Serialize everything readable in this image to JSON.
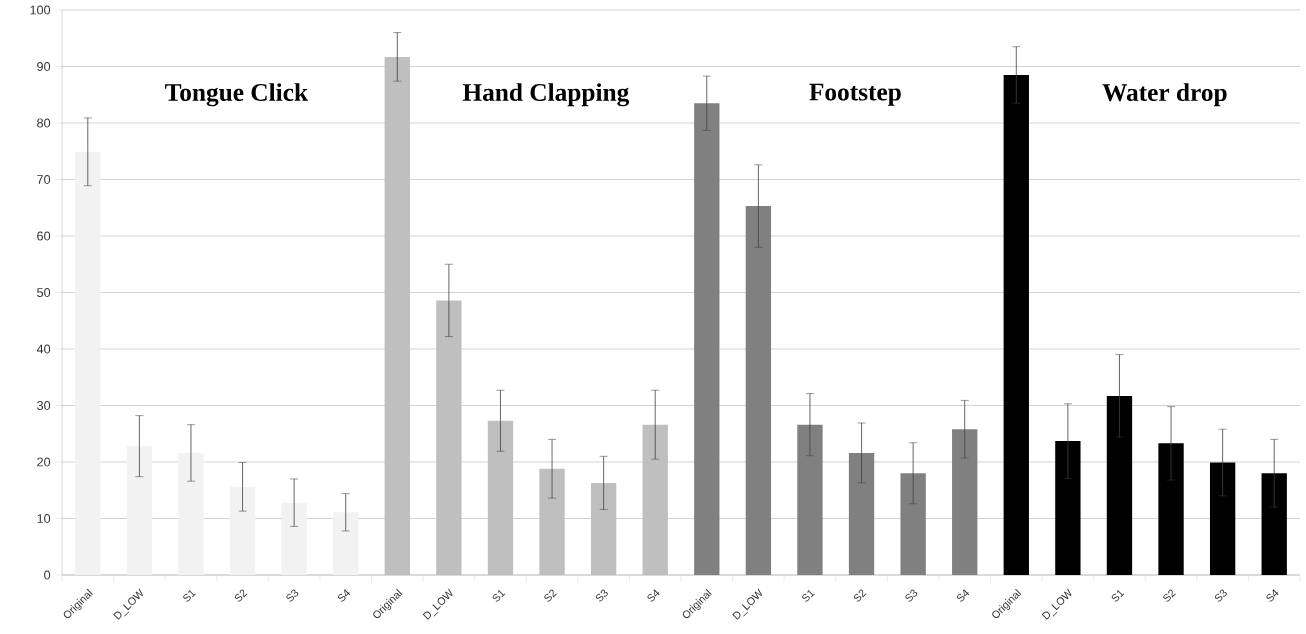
{
  "chart_data": {
    "type": "bar",
    "categories": [
      "Original",
      "D_LOW",
      "S1",
      "S2",
      "S3",
      "S4",
      "Original",
      "D_LOW",
      "S1",
      "S2",
      "S3",
      "S4",
      "Original",
      "D_LOW",
      "S1",
      "S2",
      "S3",
      "S4",
      "Original",
      "D_LOW",
      "S1",
      "S2",
      "S3",
      "S4"
    ],
    "values": [
      74.9,
      22.8,
      21.6,
      15.6,
      12.8,
      11.1,
      91.7,
      48.6,
      27.3,
      18.8,
      16.3,
      26.6,
      83.5,
      65.3,
      26.6,
      21.6,
      18.0,
      25.8,
      88.5,
      23.7,
      31.7,
      23.3,
      19.9,
      18.0
    ],
    "errors": [
      6,
      5.4,
      5,
      4.3,
      4.2,
      3.3,
      4.3,
      6.4,
      5.4,
      5.2,
      4.7,
      6.1,
      4.8,
      7.3,
      5.5,
      5.3,
      5.4,
      5.1,
      5,
      6.6,
      7.3,
      6.5,
      5.9,
      6
    ],
    "colors": [
      "#f2f2f2",
      "#f2f2f2",
      "#f2f2f2",
      "#f2f2f2",
      "#f2f2f2",
      "#f2f2f2",
      "#bfbfbf",
      "#bfbfbf",
      "#bfbfbf",
      "#bfbfbf",
      "#bfbfbf",
      "#bfbfbf",
      "#808080",
      "#808080",
      "#808080",
      "#808080",
      "#808080",
      "#808080",
      "#000000",
      "#000000",
      "#000000",
      "#000000",
      "#000000",
      "#000000"
    ],
    "annotations": [
      "Tongue Click",
      "Hand Clapping",
      "Footstep",
      "Water drop"
    ],
    "ylim": [
      0,
      100
    ],
    "yticks": [
      0,
      10,
      20,
      30,
      40,
      50,
      60,
      70,
      80,
      90,
      100
    ],
    "grid": "y"
  }
}
